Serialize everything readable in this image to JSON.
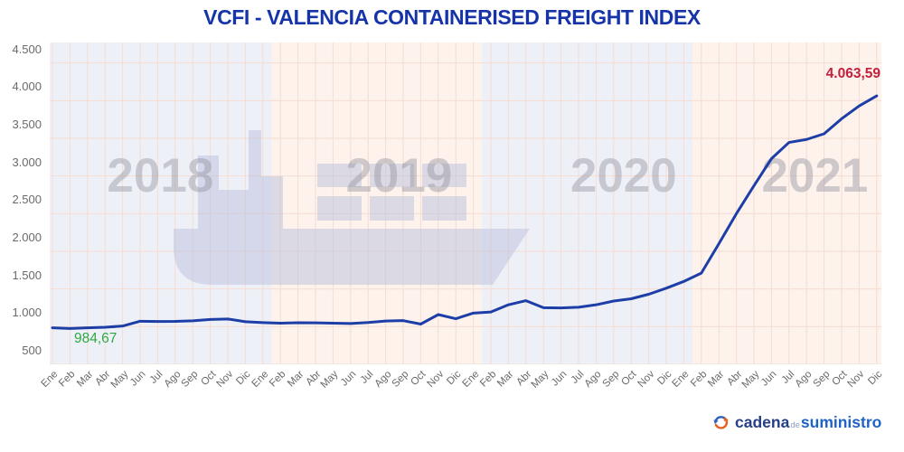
{
  "chart_data": {
    "type": "line",
    "title": "VCFI - VALENCIA CONTAINERISED FREIGHT INDEX",
    "title_color": "#1634a8",
    "categories": [
      "Ene",
      "Feb",
      "Mar",
      "Abr",
      "May",
      "Jun",
      "Jul",
      "Ago",
      "Sep",
      "Oct",
      "Nov",
      "Dic",
      "Ene",
      "Feb",
      "Mar",
      "Abr",
      "May",
      "Jun",
      "Jul",
      "Ago",
      "Sep",
      "Oct",
      "Nov",
      "Dic",
      "Ene",
      "Feb",
      "Mar",
      "Abr",
      "May",
      "Jun",
      "Jul",
      "Ago",
      "Sep",
      "Oct",
      "Nov",
      "Dic",
      "Ene",
      "Feb",
      "Mar",
      "Abr",
      "May",
      "Jun",
      "Jul",
      "Ago",
      "Sep",
      "Oct",
      "Nov",
      "Dic"
    ],
    "years": [
      "2018",
      "2019",
      "2020",
      "2021"
    ],
    "series": [
      {
        "name": "VCFI",
        "color": "#1d3ea6",
        "values": [
          984.67,
          975,
          985,
          992,
          1008,
          1072,
          1068,
          1070,
          1078,
          1095,
          1102,
          1066,
          1054,
          1046,
          1052,
          1050,
          1046,
          1042,
          1055,
          1075,
          1080,
          1034,
          1160,
          1105,
          1180,
          1195,
          1290,
          1345,
          1252,
          1248,
          1258,
          1290,
          1340,
          1370,
          1430,
          1510,
          1600,
          1710,
          2100,
          2500,
          2870,
          3230,
          3445,
          3485,
          3560,
          3760,
          3930,
          4063.59
        ]
      }
    ],
    "ylim": [
      500,
      4772
    ],
    "y_ticks": [
      {
        "value": 500,
        "label": "500"
      },
      {
        "value": 1000,
        "label": "1.000"
      },
      {
        "value": 1500,
        "label": "1.500"
      },
      {
        "value": 2000,
        "label": "2.000"
      },
      {
        "value": 2500,
        "label": "2.500"
      },
      {
        "value": 3000,
        "label": "3.000"
      },
      {
        "value": 3500,
        "label": "3.500"
      },
      {
        "value": 4000,
        "label": "4.000"
      },
      {
        "value": 4500,
        "label": "4.500"
      }
    ],
    "grid": true,
    "legend": "none",
    "band_colors": [
      "#eef0f8",
      "#fdf2ec",
      "#eef0f8",
      "#fdf2ec"
    ],
    "gridline_color": "#f4dcd1",
    "watermark_years_color": "#90909a",
    "ship_watermark_color": "#bac0dc",
    "first_point_label": {
      "text": "984,67",
      "color": "#2fa844"
    },
    "last_point_label": {
      "text": "4.063,59",
      "color": "#c2203c"
    }
  },
  "footer_logo": {
    "part1": "cadena",
    "part2": "de",
    "part3": "suministro",
    "icon_blue": "#2e5fbe",
    "icon_orange": "#e8611a"
  }
}
